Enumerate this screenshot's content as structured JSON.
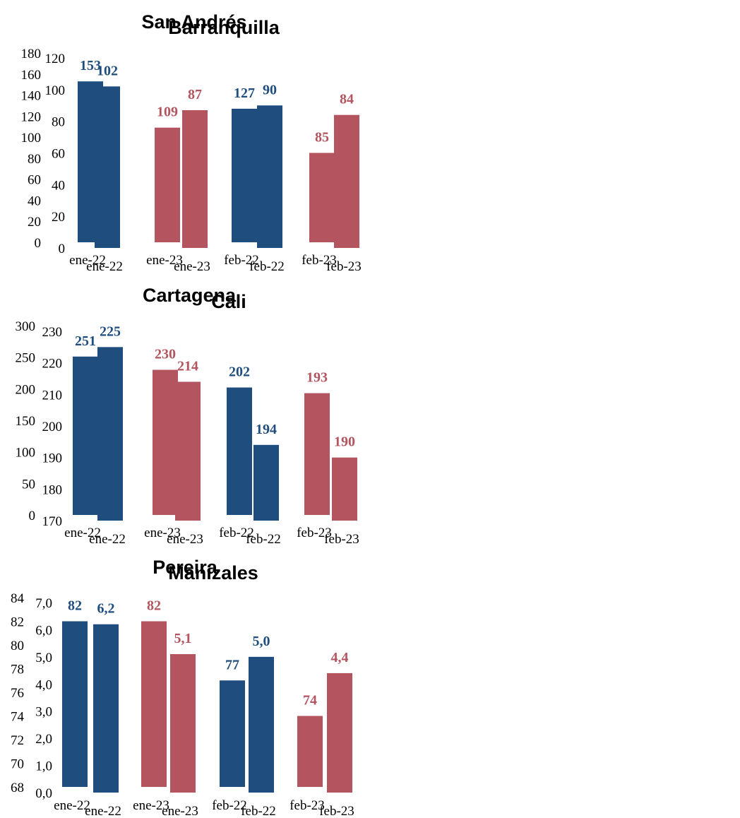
{
  "colors": {
    "blue": "#1f4e7e",
    "red": "#b3545f"
  },
  "chart_data": [
    {
      "type": "bar",
      "title": "San Andrés",
      "categories": [
        "ene-22",
        "ene-23",
        "feb-22",
        "feb-23"
      ],
      "values": [
        153,
        109,
        127,
        85
      ],
      "value_labels": [
        "153",
        "109",
        "127",
        "85"
      ],
      "bar_colors": [
        "blue",
        "red",
        "blue",
        "red"
      ],
      "ylim": [
        0,
        180
      ],
      "yticks": [
        0,
        20,
        40,
        60,
        80,
        100,
        120,
        140,
        160,
        180
      ],
      "ytick_labels": [
        "0",
        "20",
        "40",
        "60",
        "80",
        "100",
        "120",
        "140",
        "160",
        "180"
      ]
    },
    {
      "type": "bar",
      "title": "Barranquilla",
      "categories": [
        "ene-22",
        "ene-23",
        "feb-22",
        "feb-23"
      ],
      "values": [
        102,
        87,
        90,
        84
      ],
      "value_labels": [
        "102",
        "87",
        "90",
        "84"
      ],
      "bar_colors": [
        "blue",
        "red",
        "blue",
        "red"
      ],
      "ylim": [
        0,
        120
      ],
      "yticks": [
        0,
        20,
        40,
        60,
        80,
        100,
        120
      ],
      "ytick_labels": [
        "0",
        "20",
        "40",
        "60",
        "80",
        "100",
        "120"
      ]
    },
    {
      "type": "bar",
      "title": "Cartagena",
      "categories": [
        "ene-22",
        "ene-23",
        "feb-22",
        "feb-23"
      ],
      "values": [
        251,
        230,
        202,
        193
      ],
      "value_labels": [
        "251",
        "230",
        "202",
        "193"
      ],
      "bar_colors": [
        "blue",
        "red",
        "blue",
        "red"
      ],
      "ylim": [
        0,
        300
      ],
      "yticks": [
        0,
        50,
        100,
        150,
        200,
        250,
        300
      ],
      "ytick_labels": [
        "0",
        "50",
        "100",
        "150",
        "200",
        "250",
        "300"
      ]
    },
    {
      "type": "bar",
      "title": "Cali",
      "categories": [
        "ene-22",
        "ene-23",
        "feb-22",
        "feb-23"
      ],
      "values": [
        225,
        214,
        194,
        190
      ],
      "value_labels": [
        "225",
        "214",
        "194",
        "190"
      ],
      "bar_colors": [
        "blue",
        "red",
        "blue",
        "red"
      ],
      "ylim": [
        170,
        230
      ],
      "yticks": [
        170,
        180,
        190,
        200,
        210,
        220,
        230
      ],
      "ytick_labels": [
        "170",
        "180",
        "190",
        "200",
        "210",
        "220",
        "230"
      ]
    },
    {
      "type": "bar",
      "title": "Pereira",
      "categories": [
        "ene-22",
        "ene-23",
        "feb-22",
        "feb-23"
      ],
      "values": [
        82,
        82,
        77,
        74
      ],
      "value_labels": [
        "82",
        "82",
        "77",
        "74"
      ],
      "bar_colors": [
        "blue",
        "red",
        "blue",
        "red"
      ],
      "ylim": [
        68,
        84
      ],
      "yticks": [
        68,
        70,
        72,
        74,
        76,
        78,
        80,
        82,
        84
      ],
      "ytick_labels": [
        "68",
        "70",
        "72",
        "74",
        "76",
        "78",
        "80",
        "82",
        "84"
      ]
    },
    {
      "type": "bar",
      "title": "Manizales",
      "categories": [
        "ene-22",
        "ene-23",
        "feb-22",
        "feb-23"
      ],
      "values": [
        6.2,
        5.1,
        5.0,
        4.4
      ],
      "value_labels": [
        "6,2",
        "5,1",
        "5,0",
        "4,4"
      ],
      "bar_colors": [
        "blue",
        "red",
        "blue",
        "red"
      ],
      "ylim": [
        0,
        7
      ],
      "yticks": [
        0,
        1,
        2,
        3,
        4,
        5,
        6,
        7
      ],
      "ytick_labels": [
        "0,0",
        "1,0",
        "2,0",
        "3,0",
        "4,0",
        "5,0",
        "6,0",
        "7,0"
      ]
    }
  ]
}
